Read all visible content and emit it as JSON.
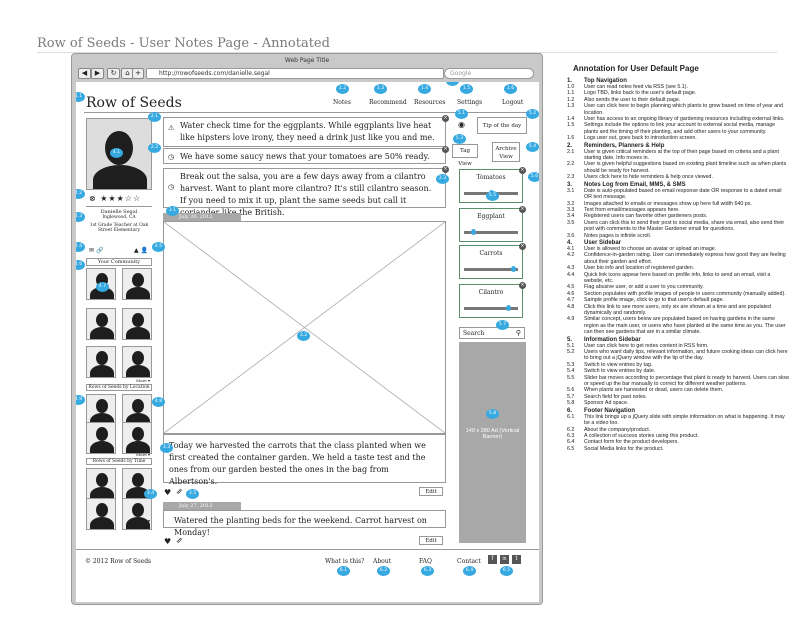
{
  "document": {
    "title": "Row of Seeds - User Notes Page - Annotated"
  },
  "browser": {
    "window_title": "Web Page Title",
    "url": "http://rowofseeds.com/danielle.segal",
    "search_placeholder": "Google",
    "nav_glyphs": {
      "back": "◀",
      "forward": "▶",
      "home": "⌂",
      "add": "+",
      "refresh": "↻"
    }
  },
  "site": {
    "logo": "Row of Seeds",
    "nav": [
      "Notes",
      "Recommend",
      "Resources",
      "Settings",
      "Logout"
    ]
  },
  "profile": {
    "name": "Danielle Segal",
    "location": "Inglewood, CA",
    "bio": "1st Grade Teacher at Oak Street Elementary",
    "rating": 3,
    "rating_max": 5,
    "community_label": "Your Community",
    "more_label": "More",
    "by_location_label": "Rows of Seeds by Location",
    "by_time_label": "Rows of Seeds by Time"
  },
  "reminders": [
    {
      "icon": "warning-icon",
      "text": "Water check time for the eggplants. While eggplants live heat like hipsters love irony, they need a drink just like you and me."
    },
    {
      "icon": "clock-icon",
      "text": "We have some saucy news that your tomatoes are 50% ready."
    },
    {
      "icon": "clock-icon",
      "text": "Break out the salsa, you are a few days away from a cilantro harvest. Want to plant more cilantro? It's still cilantro season. If you need to mix it up, plant the same seeds but call it coriander like the British."
    }
  ],
  "reminder_buttons": {
    "tip_of_day": "Tip of the day",
    "tag_view": "Tag View",
    "archive_view": "Archive View"
  },
  "notes": [
    {
      "date": "July 20, 2012",
      "text": "Today we harvested the carrots that the class planted when we first created the container garden. We held a taste test and the ones from our garden bested the ones in the bag from Albertson's.",
      "edit": "Edit"
    },
    {
      "date": "July 27, 2012",
      "text": "Watered the planting beds for the weekend. Carrot harvest on Monday!",
      "edit": "Edit"
    }
  ],
  "info_sidebar": {
    "plants": [
      {
        "name": "Tomatoes",
        "progress": 0.5
      },
      {
        "name": "Eggplant",
        "progress": 0.15
      },
      {
        "name": "Carrots",
        "progress": 0.95
      },
      {
        "name": "Cilantro",
        "progress": 0.85
      }
    ],
    "search_placeholder": "Search",
    "ad_text": "140 x 280 Ad (Vertical Banner)"
  },
  "footer": {
    "copyright": "© 2012 Row of Seeds",
    "links": [
      "What is this?",
      "About",
      "FAQ",
      "Contact"
    ],
    "social": [
      "f",
      "in",
      "t"
    ]
  },
  "badges": {
    "top": [
      "1.0",
      "1.1",
      "1.2",
      "1.3",
      "1.4",
      "1.5",
      "1.6"
    ],
    "reminders": [
      "2.1",
      "2.2",
      "2.3",
      "3.1",
      "3.2"
    ],
    "buttons": [
      "5.1",
      "5.2",
      "5.3",
      "5.4",
      "5.5",
      "5.6"
    ],
    "profile": [
      "4.1",
      "4.2",
      "4.3",
      "4.4",
      "4.5",
      "4.6",
      "4.7",
      "4.8",
      "4.9"
    ],
    "notes": [
      "3.3",
      "3.4",
      "3.5",
      "3.6"
    ],
    "sidebar": [
      "5.7",
      "5.8"
    ],
    "footer": [
      "6.1",
      "6.2",
      "6.3",
      "6.4",
      "6.5"
    ]
  },
  "annotations": {
    "title": "Annotation for User Default Page",
    "sections": [
      {
        "num": "1.",
        "title": "Top Navigation",
        "items": [
          {
            "num": "1.0",
            "text": "User can read notes feed via RSS (see 5.1)."
          },
          {
            "num": "1.1",
            "text": "Logo TBD, links back to the user's default page."
          },
          {
            "num": "1.2",
            "text": "Also sends the user to their default page."
          },
          {
            "num": "1.3",
            "text": "User can click here to begin planning which plants to grow based on time of year and location."
          },
          {
            "num": "1.4",
            "text": "User has access to an ongoing library of gardening resources including external links."
          },
          {
            "num": "1.5",
            "text": "Settings include the options to link your account to external social media, manage plants and the timing of their planting, and add other users to your community."
          },
          {
            "num": "1.6",
            "text": "Logs user out, goes back to introduction screen."
          }
        ]
      },
      {
        "num": "2.",
        "title": "Reminders, Planners & Help",
        "items": [
          {
            "num": "2.1",
            "text": "User is given critical reminders at the top of their page based on criteria and a plant starting date. Info moves in."
          },
          {
            "num": "2.2",
            "text": "User is given helpful suggestions based on existing plant timeline such as when plants should be ready for harvest."
          },
          {
            "num": "2.3",
            "text": "Users click here to hide reminders & help once viewed."
          }
        ]
      },
      {
        "num": "3.",
        "title": "Notes Log from Email, MMS, & SMS",
        "items": [
          {
            "num": "3.1",
            "text": "Date is auto-populated based on email response date OR response to a dated email OR text message."
          },
          {
            "num": "3.2",
            "text": "Images attached to emails or messages show up here full width 640 px."
          },
          {
            "num": "3.3",
            "text": "Text from email/messages appears here."
          },
          {
            "num": "3.4",
            "text": "Registered users can favorite other gardeners posts."
          },
          {
            "num": "3.5",
            "text": "Users can click this to send their post to social media, share via email, also send their post with comments to the Master Gardener email for questions."
          },
          {
            "num": "3.6",
            "text": "Notes pages is infinite scroll."
          }
        ]
      },
      {
        "num": "4.",
        "title": "User Sidebar",
        "items": [
          {
            "num": "4.1",
            "text": "User is allowed to choose an avatar or upload an image."
          },
          {
            "num": "4.2",
            "text": "Confidence-in-garden rating. User can immediately express how good they are feeling about their garden and effort."
          },
          {
            "num": "4.3",
            "text": "User bio info and location of registered garden."
          },
          {
            "num": "4.4",
            "text": "Quick link icons appear here based on profile info, links to send an email, visit a website, etc."
          },
          {
            "num": "4.5",
            "text": "Flag abusive user, or add a user to you community."
          },
          {
            "num": "4.6",
            "text": "Section populates with profile images of people in users community (manually added)."
          },
          {
            "num": "4.7",
            "text": "Sample profile image, click to go to that user's default page."
          },
          {
            "num": "4.8",
            "text": "Click this link to see more users, only six are shown at a time and are populated dynamically and randomly."
          },
          {
            "num": "4.9",
            "text": "Similar concept, users below are populated based on having gardens in the same region as the main user, or users who have planted at the same time as you. The user can then see gardens that are in a similar climate."
          }
        ]
      },
      {
        "num": "5.",
        "title": "Information Sidebar",
        "items": [
          {
            "num": "5.1",
            "text": "User can click here to get notes content in RSS form."
          },
          {
            "num": "5.2",
            "text": "Users who want daily tips, relevant information, and future cooking ideas can click here to bring out a jQuery window with the tip of the day."
          },
          {
            "num": "5.3",
            "text": "Switch to view entries by tag."
          },
          {
            "num": "5.4",
            "text": "Switch to view entries by date."
          },
          {
            "num": "5.5",
            "text": "Slider bar moves according to percentage that plant is ready to harvest. Users can slow or speed up the bar manually to correct for different weather patterns."
          },
          {
            "num": "5.6",
            "text": "When plants are harvested or dead, users can delete them."
          },
          {
            "num": "5.7",
            "text": "Search field for past notes."
          },
          {
            "num": "5.8",
            "text": "Sponsor Ad space."
          }
        ]
      },
      {
        "num": "6.",
        "title": "Footer Navigation",
        "items": [
          {
            "num": "6.1",
            "text": "This link brings up a jQuery slide with simple information on what is happening. It may be a video too."
          },
          {
            "num": "6.2",
            "text": "About the company/product."
          },
          {
            "num": "6.3",
            "text": "A collection of success stories using this product."
          },
          {
            "num": "6.4",
            "text": "Contact form for the product developers."
          },
          {
            "num": "6.5",
            "text": "Social Media links for the product."
          }
        ]
      }
    ]
  }
}
